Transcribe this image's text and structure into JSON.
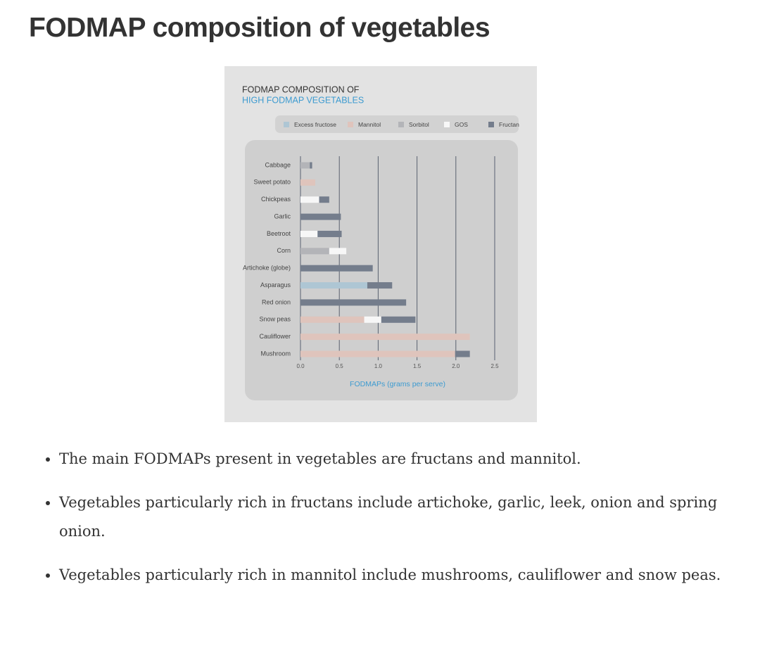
{
  "heading": "FODMAP composition of vegetables",
  "chart_data": {
    "type": "stacked-barh",
    "title": "FODMAP COMPOSITION OF",
    "subtitle": "HIGH FODMAP VEGETABLES",
    "x_label": "FODMAPs (grams per serve)",
    "categories": [
      "Cabbage",
      "Sweet potato",
      "Chickpeas",
      "Garlic",
      "Beetroot",
      "Corn",
      "Artichoke (globe)",
      "Asparagus",
      "Red onion",
      "Snow peas",
      "Cauliflower",
      "Mushroom"
    ],
    "series": [
      {
        "name": "Excess fructose",
        "color": "#aec6d4",
        "values": [
          0,
          0,
          0,
          0,
          0,
          0,
          0,
          0.86,
          0,
          0,
          0,
          0
        ]
      },
      {
        "name": "Mannitol",
        "color": "#dfc4bc",
        "values": [
          0,
          0.19,
          0,
          0,
          0,
          0,
          0,
          0,
          0,
          0.82,
          2.18,
          1.99
        ]
      },
      {
        "name": "Sorbitol",
        "color": "#b3b4b8",
        "values": [
          0.12,
          0,
          0,
          0,
          0,
          0.37,
          0,
          0,
          0,
          0,
          0,
          0
        ]
      },
      {
        "name": "GOS",
        "color": "#f7f7f7",
        "values": [
          0,
          0,
          0.24,
          0,
          0.22,
          0.22,
          0,
          0,
          0,
          0.22,
          0,
          0
        ]
      },
      {
        "name": "Fructan",
        "color": "#747d8c",
        "values": [
          0.03,
          0,
          0.13,
          0.52,
          0.31,
          0,
          0.93,
          0.32,
          1.36,
          0.44,
          0,
          0.19
        ]
      }
    ],
    "xlim": [
      0,
      2.5
    ],
    "xticks": [
      {
        "value": 0,
        "label": "0.0"
      },
      0.5,
      {
        "value": 1,
        "label": "1.0"
      },
      1.5,
      {
        "value": 2,
        "label": "2.0"
      },
      2.5
    ],
    "grid": true
  },
  "bullets": [
    "The main FODMAPs present in vegetables are fructans and mannitol.",
    "Vegetables particularly rich in fructans include artichoke, garlic, leek, onion and spring onion.",
    "Vegetables particularly rich in mannitol include mushrooms, cauliflower and snow peas."
  ]
}
